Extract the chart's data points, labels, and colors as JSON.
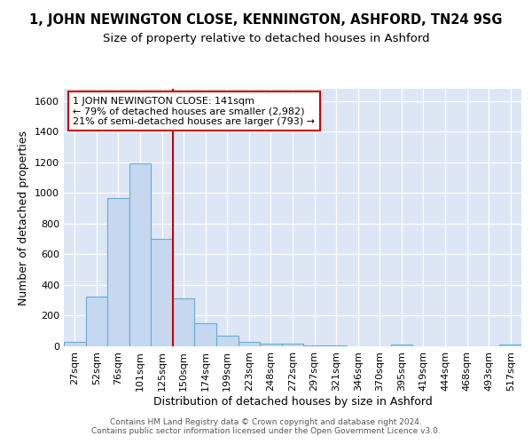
{
  "title_main": "1, JOHN NEWINGTON CLOSE, KENNINGTON, ASHFORD, TN24 9SG",
  "title_sub": "Size of property relative to detached houses in Ashford",
  "xlabel": "Distribution of detached houses by size in Ashford",
  "ylabel": "Number of detached properties",
  "bar_color": "#c5d8f0",
  "bar_edge_color": "#6aaad4",
  "background_color": "#dce6f5",
  "grid_color": "#ffffff",
  "fig_bg_color": "#ffffff",
  "categories": [
    "27sqm",
    "52sqm",
    "76sqm",
    "101sqm",
    "125sqm",
    "150sqm",
    "174sqm",
    "199sqm",
    "223sqm",
    "248sqm",
    "272sqm",
    "297sqm",
    "321sqm",
    "346sqm",
    "370sqm",
    "395sqm",
    "419sqm",
    "444sqm",
    "468sqm",
    "493sqm",
    "517sqm"
  ],
  "values": [
    30,
    325,
    965,
    1195,
    700,
    310,
    150,
    70,
    28,
    20,
    15,
    5,
    5,
    0,
    0,
    12,
    0,
    0,
    0,
    0,
    12
  ],
  "vline_color": "#cc0000",
  "vline_x_index": 4.5,
  "annotation_text": "1 JOHN NEWINGTON CLOSE: 141sqm\n← 79% of detached houses are smaller (2,982)\n21% of semi-detached houses are larger (793) →",
  "annotation_box_facecolor": "#ffffff",
  "annotation_box_edgecolor": "#cc0000",
  "ylim": [
    0,
    1680
  ],
  "yticks": [
    0,
    200,
    400,
    600,
    800,
    1000,
    1200,
    1400,
    1600
  ],
  "footer": "Contains HM Land Registry data © Crown copyright and database right 2024.\nContains public sector information licensed under the Open Government Licence v3.0.",
  "title_fontsize": 10.5,
  "subtitle_fontsize": 9.5,
  "axis_label_fontsize": 9,
  "tick_fontsize": 8,
  "annotation_fontsize": 8,
  "footer_fontsize": 6.5
}
